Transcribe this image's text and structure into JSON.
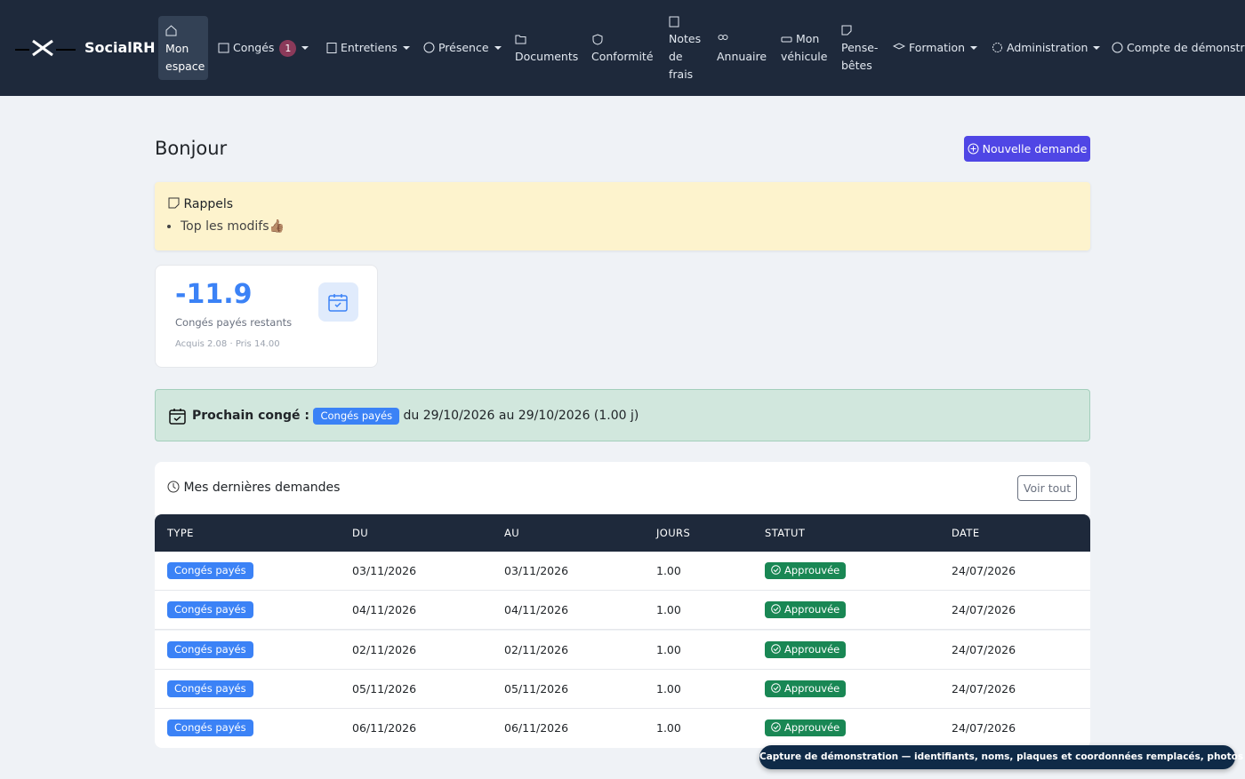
{
  "nav": {
    "brand": "SocialRH",
    "items": {
      "home": "Mon espace",
      "leave": "Congés",
      "leave_badge": 1,
      "interviews": "Entretiens",
      "presence": "Présence",
      "documents": "Documents",
      "compliance": "Conformité",
      "expenses": "Notes de frais",
      "directory": "Annuaire",
      "vehicle": "Mon véhicule",
      "notes": "Pense-bêtes",
      "training": "Formation",
      "admin": "Administration",
      "account": "Compte de démonstration"
    }
  },
  "header": {
    "title": "Bonjour",
    "new_request": "Nouvelle demande"
  },
  "reminders": {
    "title": "Rappels",
    "items": [
      "Top les modifs👍🏽"
    ]
  },
  "stat": {
    "value": -11.9,
    "label": "Congés payés restants",
    "detail": "Acquis 2.08 · Pris 14.00"
  },
  "next_leave": {
    "label": "Prochain congé :",
    "type": "Congés payés",
    "text": "du 29/10/2026 au 29/10/2026 (1.00 j)"
  },
  "requests": {
    "title": "Mes dernières demandes",
    "see_all": "Voir tout",
    "columns": [
      "TYPE",
      "DU",
      "AU",
      "JOURS",
      "STATUT",
      "DATE"
    ],
    "rows": [
      [
        "Congés payés",
        "03/11/2026",
        "03/11/2026",
        "1.00",
        "Approuvée",
        "24/07/2026"
      ],
      [
        "Congés payés",
        "04/11/2026",
        "04/11/2026",
        "1.00",
        "Approuvée",
        "24/07/2026"
      ],
      [
        "Congés payés",
        "02/11/2026",
        "02/11/2026",
        "1.00",
        "Approuvée",
        "24/07/2026"
      ],
      [
        "Congés payés",
        "05/11/2026",
        "05/11/2026",
        "1.00",
        "Approuvée",
        "24/07/2026"
      ],
      [
        "Congés payés",
        "06/11/2026",
        "06/11/2026",
        "1.00",
        "Approuvée",
        "24/07/2026"
      ]
    ]
  },
  "toast": "Capture de démonstration — identifiants, noms, plaques et coordonnées remplacés, photos floutées"
}
